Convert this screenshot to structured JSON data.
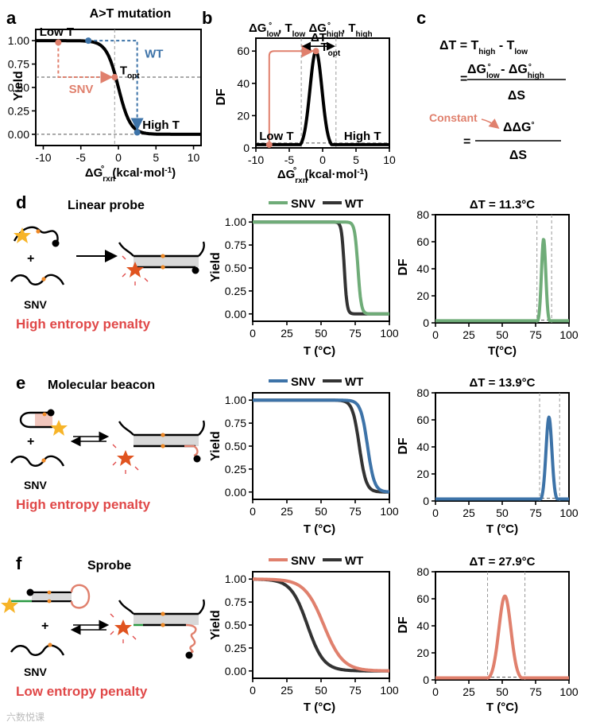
{
  "figure_kind": "multi-panel scientific figure",
  "colors": {
    "snv_green": "#6fac78",
    "snv_blue": "#3d73a8",
    "snv_salmon": "#e0806d",
    "wt": "#333333",
    "black": "#000000",
    "accent_red": "#e04848",
    "fluor_star": "#f7b428",
    "quencher_star": "#e0531f",
    "orange_dot": "#ef8a28",
    "grey_dash": "#999999",
    "blue_dash": "#3d73a8"
  },
  "panels": {
    "a": {
      "letter": "a",
      "title": "A>T mutation",
      "labels": {
        "low": "Low T",
        "high": "High T",
        "wt": "WT",
        "snv": "SNV",
        "topt_T": "T",
        "topt_sub": "opt"
      },
      "ylabel": "Yield",
      "xlabel_main": "ΔG",
      "xlabel_sub": "rxn",
      "xlabel_sup": "°",
      "xlabel_unit": " (kcal·mol",
      "xlabel_exp": "-1",
      "xlabel_end": ")"
    },
    "b": {
      "letter": "b",
      "title": {
        "p1": "ΔG",
        "p1_sup": "°",
        "p1_sub": "low",
        "p2": ", T",
        "p2_sub": "low",
        "p3": " ΔG",
        "p3_sup": "°",
        "p3_sub": "high",
        "p4": ", T",
        "p4_sub": "high"
      },
      "labels": {
        "dT": "ΔT",
        "topt_T": "T",
        "topt_sub": "opt",
        "low": "Low T",
        "high": "High T"
      },
      "ylabel": "DF",
      "xlabel_main": "ΔG",
      "xlabel_sub": "rxn",
      "xlabel_sup": "°",
      "xlabel_unit": " (kcal·mol",
      "xlabel_exp": "-1",
      "xlabel_end": ")"
    },
    "c": {
      "letter": "c",
      "eq1": {
        "lhs": "ΔT = T",
        "sub1": "high",
        "mid": " - T",
        "sub2": "low"
      },
      "eq2": {
        "eq": "=",
        "num_a": "ΔG",
        "num_a_sup": "°",
        "num_a_sub": "low",
        "num_mid": " - ΔG",
        "num_b_sup": "°",
        "num_b_sub": "high",
        "den": "ΔS"
      },
      "eq3": {
        "constant": "Constant",
        "eq": "=",
        "num": "ΔΔG",
        "num_sup": "°",
        "den": "ΔS"
      }
    },
    "d": {
      "letter": "d",
      "probe_title": "Linear probe",
      "plus": "+",
      "snv_label": "SNV",
      "penalty": "High entropy penalty",
      "legend_snv": "SNV",
      "legend_wt": "WT",
      "df_title": "ΔT = 11.3°C",
      "yield_ylabel": "Yield",
      "yield_xlabel": "T (°C)",
      "df_ylabel": "DF",
      "df_xlabel": "T(°C)"
    },
    "e": {
      "letter": "e",
      "probe_title": "Molecular beacon",
      "plus": "+",
      "snv_label": "SNV",
      "penalty": "High entropy penalty",
      "legend_snv": "SNV",
      "legend_wt": "WT",
      "df_title": "ΔT = 13.9°C",
      "yield_ylabel": "Yield",
      "yield_xlabel": "T (°C)",
      "df_ylabel": "DF",
      "df_xlabel": "T (°C)"
    },
    "f": {
      "letter": "f",
      "probe_title": "Sprobe",
      "plus": "+",
      "snv_label": "SNV",
      "penalty": "Low entropy penalty",
      "legend_snv": "SNV",
      "legend_wt": "WT",
      "df_title": "ΔT = 27.9°C",
      "yield_ylabel": "Yield",
      "yield_xlabel": "T (°C)",
      "df_ylabel": "DF",
      "df_xlabel": "T (°C)"
    }
  },
  "watermark": "六数悦课",
  "chart_data": [
    {
      "id": "a",
      "type": "line",
      "title": "A>T mutation",
      "xlabel": "ΔG°rxn (kcal·mol-1)",
      "ylabel": "Yield",
      "xlim": [
        -11,
        11
      ],
      "ylim": [
        -0.12,
        1.12
      ],
      "xticks": [
        -10,
        -5,
        0,
        5,
        10
      ],
      "yticks": [
        0.0,
        0.25,
        0.5,
        0.75,
        1.0
      ],
      "ytick_labels": [
        "0.00",
        "0.25",
        "0.50",
        "0.75",
        "1.00"
      ],
      "series": [
        {
          "name": "Yield curve",
          "kind": "logistic",
          "center": 0,
          "width": 0.8,
          "color": "#000000"
        }
      ],
      "markers": [
        {
          "name": "Low T",
          "x": -8,
          "y": 0.98,
          "color": "#e0806d"
        },
        {
          "name": "WT",
          "x": -4,
          "y": 1.0,
          "color": "#3d73a8"
        },
        {
          "name": "T_opt",
          "x": -0.5,
          "y": 0.61,
          "color": "#e0806d"
        },
        {
          "name": "High T",
          "x": 2.5,
          "y": 0.02,
          "color": "#3d73a8"
        }
      ],
      "guides": {
        "v": [
          -0.5
        ],
        "h": [
          0.61,
          0.0
        ]
      }
    },
    {
      "id": "b",
      "type": "line",
      "xlabel": "ΔG°rxn (kcal·mol-1)",
      "ylabel": "DF",
      "xlim": [
        -10,
        10
      ],
      "ylim": [
        0,
        68
      ],
      "xticks": [
        -10,
        -5,
        0,
        5,
        10
      ],
      "yticks": [
        0,
        20,
        40,
        60
      ],
      "series": [
        {
          "name": "DF",
          "kind": "gaussian",
          "center": -1,
          "sigma": 0.9,
          "peak": 60,
          "base": 2,
          "color": "#000000"
        }
      ],
      "guides": {
        "v": [
          -3.2,
          2
        ],
        "h": [
          3
        ]
      },
      "markers": [
        {
          "name": "Low T",
          "x": -8,
          "y": 2,
          "color": "#e0806d"
        },
        {
          "name": "T_opt",
          "x": -1,
          "y": 60,
          "color": "#e0806d"
        }
      ]
    },
    {
      "id": "d_yield",
      "type": "line",
      "xlabel": "T (°C)",
      "ylabel": "Yield",
      "xlim": [
        0,
        100
      ],
      "ylim": [
        -0.08,
        1.08
      ],
      "xticks": [
        0,
        25,
        50,
        75,
        100
      ],
      "yticks": [
        0.0,
        0.25,
        0.5,
        0.75,
        1.0
      ],
      "ytick_labels": [
        "0.00",
        "0.25",
        "0.50",
        "0.75",
        "1.00"
      ],
      "series": [
        {
          "name": "SNV",
          "kind": "logistic",
          "center": 77,
          "width": 1.2,
          "color": "#6fac78"
        },
        {
          "name": "WT",
          "kind": "logistic",
          "center": 67,
          "width": 1.0,
          "color": "#333333"
        }
      ]
    },
    {
      "id": "d_df",
      "type": "line",
      "title": "ΔT = 11.3°C",
      "xlabel": "T(°C)",
      "ylabel": "DF",
      "xlim": [
        0,
        100
      ],
      "ylim": [
        0,
        80
      ],
      "xticks": [
        0,
        25,
        50,
        75,
        100
      ],
      "yticks": [
        0,
        20,
        40,
        60,
        80
      ],
      "series": [
        {
          "name": "DF",
          "kind": "gaussian",
          "center": 81,
          "sigma": 1.6,
          "peak": 62,
          "base": 1.5,
          "color": "#6fac78"
        }
      ],
      "guides": {
        "v": [
          76,
          87
        ],
        "h": [
          2
        ]
      }
    },
    {
      "id": "e_yield",
      "type": "line",
      "xlabel": "T (°C)",
      "ylabel": "Yield",
      "xlim": [
        0,
        100
      ],
      "ylim": [
        -0.08,
        1.08
      ],
      "xticks": [
        0,
        25,
        50,
        75,
        100
      ],
      "yticks": [
        0.0,
        0.25,
        0.5,
        0.75,
        1.0
      ],
      "ytick_labels": [
        "0.00",
        "0.25",
        "0.50",
        "0.75",
        "1.00"
      ],
      "series": [
        {
          "name": "SNV",
          "kind": "logistic",
          "center": 84,
          "width": 2.5,
          "color": "#3d73a8"
        },
        {
          "name": "WT",
          "kind": "logistic",
          "center": 78,
          "width": 2.5,
          "color": "#333333"
        }
      ]
    },
    {
      "id": "e_df",
      "type": "line",
      "title": "ΔT = 13.9°C",
      "xlabel": "T (°C)",
      "ylabel": "DF",
      "xlim": [
        0,
        100
      ],
      "ylim": [
        0,
        80
      ],
      "xticks": [
        0,
        25,
        50,
        75,
        100
      ],
      "yticks": [
        0,
        20,
        40,
        60,
        80
      ],
      "series": [
        {
          "name": "DF",
          "kind": "gaussian",
          "center": 85,
          "sigma": 2.2,
          "peak": 62,
          "base": 1.5,
          "color": "#3d73a8"
        }
      ],
      "guides": {
        "v": [
          78,
          93
        ],
        "h": [
          2
        ]
      }
    },
    {
      "id": "f_yield",
      "type": "line",
      "xlabel": "T (°C)",
      "ylabel": "Yield",
      "xlim": [
        0,
        100
      ],
      "ylim": [
        -0.08,
        1.08
      ],
      "xticks": [
        0,
        25,
        50,
        75,
        100
      ],
      "yticks": [
        0.0,
        0.25,
        0.5,
        0.75,
        1.0
      ],
      "ytick_labels": [
        "0.00",
        "0.25",
        "0.50",
        "0.75",
        "1.00"
      ],
      "series": [
        {
          "name": "SNV",
          "kind": "logistic",
          "center": 52,
          "width": 7,
          "color": "#e0806d"
        },
        {
          "name": "WT",
          "kind": "logistic",
          "center": 40,
          "width": 6,
          "color": "#333333"
        }
      ]
    },
    {
      "id": "f_df",
      "type": "line",
      "title": "ΔT = 27.9°C",
      "xlabel": "T (°C)",
      "ylabel": "DF",
      "xlim": [
        0,
        100
      ],
      "ylim": [
        0,
        80
      ],
      "xticks": [
        0,
        25,
        50,
        75,
        100
      ],
      "yticks": [
        0,
        20,
        40,
        60,
        80
      ],
      "series": [
        {
          "name": "DF",
          "kind": "gaussian",
          "center": 52,
          "sigma": 4.5,
          "peak": 62,
          "base": 1.5,
          "color": "#e0806d"
        }
      ],
      "guides": {
        "v": [
          39,
          67
        ],
        "h": [
          2
        ]
      }
    }
  ]
}
